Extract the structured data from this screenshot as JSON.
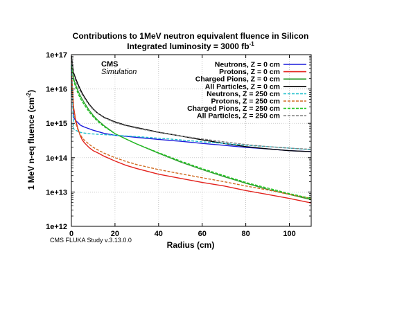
{
  "chart_data": {
    "type": "line",
    "title": "Contributions to 1MeV neutron equivalent fluence in Silicon",
    "subtitle_prefix": "Integrated luminosity = 3000 fb",
    "subtitle_sup": "-1",
    "xlabel": "Radius (cm)",
    "ylabel_prefix": "1 MeV n-eq fluence (cm",
    "ylabel_sup": "-2",
    "ylabel_suffix": ")",
    "xlim": [
      0,
      110
    ],
    "ylim": [
      1000000000000.0,
      1e+17
    ],
    "yscale": "log",
    "grid": true,
    "legend_position": "top-right",
    "x_ticks": [
      "0",
      "20",
      "40",
      "60",
      "80",
      "100"
    ],
    "y_ticks": [
      "1e+12",
      "1e+13",
      "1e+14",
      "1e+15",
      "1e+16",
      "1e+17"
    ],
    "annotation_cms": "CMS",
    "annotation_sim": "Simulation",
    "footnote": "CMS FLUKA Study v.3.13.0.0",
    "x": [
      0,
      1,
      2,
      3,
      4,
      5,
      6,
      8,
      10,
      12,
      15,
      20,
      25,
      30,
      40,
      50,
      60,
      70,
      80,
      90,
      100,
      110
    ],
    "series": [
      {
        "name": "Neutrons, Z = 0 cm",
        "color": "#1a1adb",
        "dashed": false,
        "values": [
          4e+16,
          1500000000000000.0,
          1200000000000000.0,
          1050000000000000.0,
          900000000000000.0,
          830000000000000.0,
          780000000000000.0,
          700000000000000.0,
          630000000000000.0,
          580000000000000.0,
          510000000000000.0,
          450000000000000.0,
          420000000000000.0,
          390000000000000.0,
          340000000000000.0,
          300000000000000.0,
          260000000000000.0,
          230000000000000.0,
          200000000000000.0,
          180000000000000.0,
          160000000000000.0,
          150000000000000.0
        ]
      },
      {
        "name": "Protons, Z = 0 cm",
        "color": "#e3211c",
        "dashed": false,
        "values": [
          4e+16,
          3000000000000000.0,
          1200000000000000.0,
          700000000000000.0,
          450000000000000.0,
          330000000000000.0,
          270000000000000.0,
          200000000000000.0,
          160000000000000.0,
          140000000000000.0,
          110000000000000.0,
          80000000000000.0,
          60000000000000.0,
          48000000000000.0,
          33000000000000.0,
          25000000000000.0,
          19000000000000.0,
          15000000000000.0,
          11000000000000.0,
          8500000000000.0,
          6500000000000.0,
          4800000000000.0
        ]
      },
      {
        "name": "Charged Pions, Z = 0 cm",
        "color": "#2e9b2e",
        "dashed": false,
        "values": [
          8e+16,
          2e+16,
          1.3e+16,
          9000000000000000.0,
          6500000000000000.0,
          5000000000000000.0,
          3900000000000000.0,
          2500000000000000.0,
          1700000000000000.0,
          1250000000000000.0,
          850000000000000.0,
          500000000000000.0,
          350000000000000.0,
          250000000000000.0,
          135000000000000.0,
          75000000000000.0,
          45000000000000.0,
          28000000000000.0,
          18000000000000.0,
          12000000000000.0,
          8500000000000.0,
          6000000000000.0
        ]
      },
      {
        "name": "All Particles, Z = 0 cm",
        "color": "#000000",
        "dashed": false,
        "values": [
          9e+16,
          3e+16,
          2e+16,
          1.4e+16,
          1e+16,
          7500000000000000.0,
          5800000000000000.0,
          3700000000000000.0,
          2600000000000000.0,
          2000000000000000.0,
          1500000000000000.0,
          1100000000000000.0,
          880000000000000.0,
          750000000000000.0,
          550000000000000.0,
          430000000000000.0,
          330000000000000.0,
          260000000000000.0,
          210000000000000.0,
          180000000000000.0,
          160000000000000.0,
          150000000000000.0
        ]
      },
      {
        "name": "Neutrons, Z = 250 cm",
        "color": "#20c0cc",
        "dashed": true,
        "values": [
          5e+16,
          700000000000000.0,
          630000000000000.0,
          580000000000000.0,
          550000000000000.0,
          530000000000000.0,
          520000000000000.0,
          500000000000000.0,
          490000000000000.0,
          480000000000000.0,
          470000000000000.0,
          450000000000000.0,
          430000000000000.0,
          410000000000000.0,
          370000000000000.0,
          330000000000000.0,
          290000000000000.0,
          260000000000000.0,
          230000000000000.0,
          210000000000000.0,
          190000000000000.0,
          170000000000000.0
        ]
      },
      {
        "name": "Protons, Z = 250 cm",
        "color": "#d06a20",
        "dashed": true,
        "values": [
          2e+16,
          2500000000000000.0,
          1000000000000000.0,
          650000000000000.0,
          480000000000000.0,
          380000000000000.0,
          320000000000000.0,
          250000000000000.0,
          200000000000000.0,
          170000000000000.0,
          135000000000000.0,
          100000000000000.0,
          78000000000000.0,
          63000000000000.0,
          45000000000000.0,
          34000000000000.0,
          26000000000000.0,
          20000000000000.0,
          15000000000000.0,
          11500000000000.0,
          8500000000000.0,
          6500000000000.0
        ]
      },
      {
        "name": "Charged Pions, Z = 250 cm",
        "color": "#1cc41c",
        "dashed": true,
        "values": [
          6e+16,
          1.8e+16,
          1.1e+16,
          7500000000000000.0,
          5500000000000000.0,
          4300000000000000.0,
          3400000000000000.0,
          2200000000000000.0,
          1550000000000000.0,
          1150000000000000.0,
          800000000000000.0,
          500000000000000.0,
          350000000000000.0,
          250000000000000.0,
          140000000000000.0,
          80000000000000.0,
          48000000000000.0,
          30000000000000.0,
          19000000000000.0,
          13000000000000.0,
          9000000000000.0,
          6500000000000.0
        ]
      },
      {
        "name": "All Particles, Z = 250 cm",
        "color": "#808080",
        "dashed": true,
        "values": [
          8e+16,
          2.6e+16,
          1.7e+16,
          1.2e+16,
          8800000000000000.0,
          6800000000000000.0,
          5400000000000000.0,
          3500000000000000.0,
          2500000000000000.0,
          1950000000000000.0,
          1450000000000000.0,
          1050000000000000.0,
          850000000000000.0,
          720000000000000.0,
          540000000000000.0,
          430000000000000.0,
          350000000000000.0,
          290000000000000.0,
          240000000000000.0,
          210000000000000.0,
          190000000000000.0,
          175000000000000.0
        ]
      }
    ]
  }
}
